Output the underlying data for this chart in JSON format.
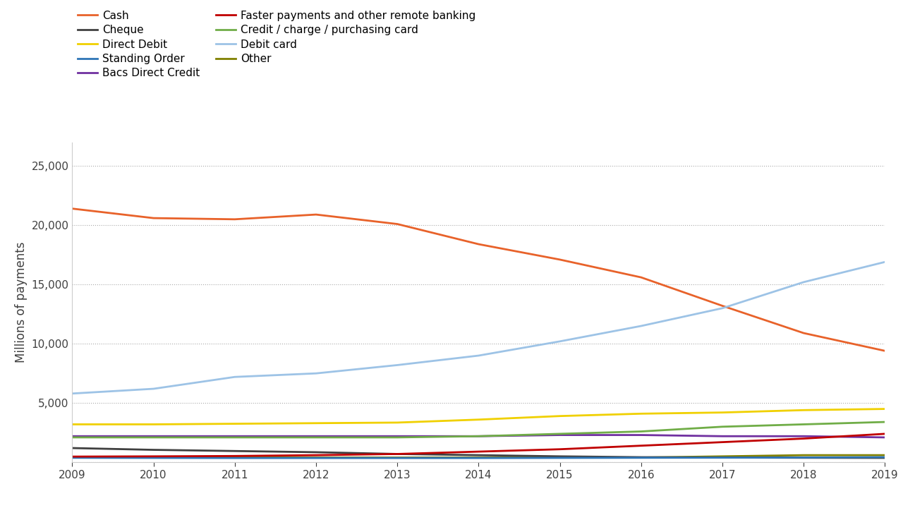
{
  "years": [
    2009,
    2010,
    2011,
    2012,
    2013,
    2014,
    2015,
    2016,
    2017,
    2018,
    2019
  ],
  "series": {
    "Cash": {
      "color": "#E8622A",
      "values": [
        21400,
        20600,
        20500,
        20900,
        20100,
        18400,
        17100,
        15600,
        13200,
        10900,
        9400
      ]
    },
    "Direct Debit": {
      "color": "#F0D000",
      "values": [
        3200,
        3200,
        3250,
        3300,
        3350,
        3600,
        3900,
        4100,
        4200,
        4400,
        4500
      ]
    },
    "Bacs Direct Credit": {
      "color": "#7030A0",
      "values": [
        2200,
        2200,
        2200,
        2200,
        2200,
        2200,
        2300,
        2300,
        2200,
        2200,
        2100
      ]
    },
    "Credit / charge / purchasing card": {
      "color": "#70AD47",
      "values": [
        2100,
        2100,
        2100,
        2100,
        2100,
        2200,
        2400,
        2600,
        3000,
        3200,
        3400
      ]
    },
    "Other": {
      "color": "#808000",
      "values": [
        400,
        400,
        400,
        400,
        400,
        400,
        400,
        400,
        500,
        600,
        600
      ]
    },
    "Cheque": {
      "color": "#404040",
      "values": [
        1200,
        1050,
        950,
        850,
        700,
        600,
        500,
        430,
        400,
        380,
        370
      ]
    },
    "Standing Order": {
      "color": "#2E75B6",
      "values": [
        380,
        370,
        360,
        360,
        360,
        360,
        370,
        380,
        390,
        400,
        430
      ]
    },
    "Faster payments and other remote banking": {
      "color": "#C00000",
      "values": [
        480,
        500,
        530,
        600,
        700,
        900,
        1100,
        1400,
        1700,
        2000,
        2400
      ]
    },
    "Debit card": {
      "color": "#9DC3E6",
      "values": [
        5800,
        6200,
        7200,
        7500,
        8200,
        9000,
        10200,
        11500,
        13000,
        15200,
        16900
      ]
    }
  },
  "left_col": [
    "Cash",
    "Direct Debit",
    "Bacs Direct Credit",
    "Credit / charge / purchasing card",
    "Other"
  ],
  "right_col": [
    "Cheque",
    "Standing Order",
    "Faster payments and other remote banking",
    "Debit card"
  ],
  "ylabel": "Millions of payments",
  "ylim": [
    0,
    27000
  ],
  "yticks": [
    0,
    5000,
    10000,
    15000,
    20000,
    25000
  ],
  "xlim": [
    2009,
    2019
  ],
  "background_color": "#ffffff",
  "grid_color": "#aaaaaa",
  "legend_fontsize": 11
}
